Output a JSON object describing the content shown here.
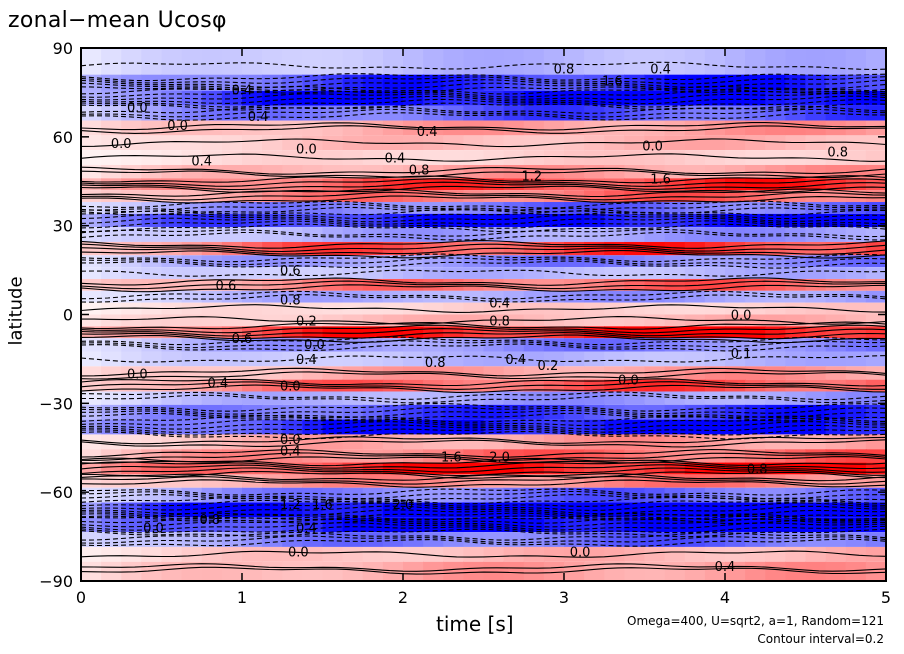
{
  "chart_data": {
    "type": "heatmap",
    "title": "zonal−mean Ucosφ",
    "xlabel": "time [s]",
    "ylabel": "latitude",
    "xlim": [
      0,
      5
    ],
    "ylim": [
      -90,
      90
    ],
    "x_ticks": [
      {
        "value": 0,
        "label": "0"
      },
      {
        "value": 1,
        "label": "1"
      },
      {
        "value": 2,
        "label": "2"
      },
      {
        "value": 3,
        "label": "3"
      },
      {
        "value": 4,
        "label": "4"
      },
      {
        "value": 5,
        "label": "5"
      }
    ],
    "y_ticks": [
      {
        "value": 90,
        "label": "90"
      },
      {
        "value": 60,
        "label": "60"
      },
      {
        "value": 30,
        "label": "30"
      },
      {
        "value": 0,
        "label": "0"
      },
      {
        "value": -30,
        "label": "−30"
      },
      {
        "value": -60,
        "label": "−60"
      },
      {
        "value": -90,
        "label": "−90"
      }
    ],
    "contour_interval": 0.2,
    "colors": {
      "positive": "#ff0000",
      "negative": "#0000ff",
      "zero": "#ffffff"
    },
    "bands": [
      {
        "lat": 84,
        "amp": -0.6
      },
      {
        "lat": 78,
        "amp": -1.8
      },
      {
        "lat": 73,
        "amp": -2.4
      },
      {
        "lat": 68,
        "amp": -1.4
      },
      {
        "lat": 63,
        "amp": 0.8
      },
      {
        "lat": 58,
        "amp": 0.6
      },
      {
        "lat": 53,
        "amp": 0.4
      },
      {
        "lat": 48,
        "amp": 0.8
      },
      {
        "lat": 44,
        "amp": 1.6
      },
      {
        "lat": 40,
        "amp": 1.2
      },
      {
        "lat": 36,
        "amp": -1.2
      },
      {
        "lat": 32,
        "amp": -2.2
      },
      {
        "lat": 27,
        "amp": -0.8
      },
      {
        "lat": 22,
        "amp": 1.6
      },
      {
        "lat": 18,
        "amp": -1.0
      },
      {
        "lat": 14,
        "amp": -0.6
      },
      {
        "lat": 10,
        "amp": 1.2
      },
      {
        "lat": 6,
        "amp": -0.8
      },
      {
        "lat": 2,
        "amp": 0.4
      },
      {
        "lat": -2,
        "amp": 0.6
      },
      {
        "lat": -6,
        "amp": 2.0
      },
      {
        "lat": -10,
        "amp": -1.0
      },
      {
        "lat": -15,
        "amp": -0.6
      },
      {
        "lat": -20,
        "amp": 0.8
      },
      {
        "lat": -24,
        "amp": 1.4
      },
      {
        "lat": -28,
        "amp": -0.8
      },
      {
        "lat": -33,
        "amp": -1.6
      },
      {
        "lat": -38,
        "amp": -2.2
      },
      {
        "lat": -43,
        "amp": 0.8
      },
      {
        "lat": -48,
        "amp": 1.2
      },
      {
        "lat": -52,
        "amp": 2.0
      },
      {
        "lat": -56,
        "amp": 1.0
      },
      {
        "lat": -61,
        "amp": -1.2
      },
      {
        "lat": -66,
        "amp": -2.8
      },
      {
        "lat": -71,
        "amp": -2.4
      },
      {
        "lat": -76,
        "amp": -1.2
      },
      {
        "lat": -81,
        "amp": 0.6
      },
      {
        "lat": -86,
        "amp": 0.8
      }
    ],
    "contour_labels": [
      {
        "t": 3.0,
        "lat": 83,
        "text": "0.8"
      },
      {
        "t": 3.6,
        "lat": 83,
        "text": "0.4"
      },
      {
        "t": 3.3,
        "lat": 79,
        "text": "1.6"
      },
      {
        "t": 1.0,
        "lat": 76,
        "text": "0.4"
      },
      {
        "t": 0.35,
        "lat": 70,
        "text": "0.0"
      },
      {
        "t": 1.1,
        "lat": 67,
        "text": "0.4"
      },
      {
        "t": 0.6,
        "lat": 64,
        "text": "0.0"
      },
      {
        "t": 2.15,
        "lat": 62,
        "text": "0.4"
      },
      {
        "t": 0.25,
        "lat": 58,
        "text": "0.0"
      },
      {
        "t": 1.4,
        "lat": 56,
        "text": "0.0"
      },
      {
        "t": 0.75,
        "lat": 52,
        "text": "0.4"
      },
      {
        "t": 1.95,
        "lat": 53,
        "text": "0.4"
      },
      {
        "t": 2.1,
        "lat": 49,
        "text": "0.8"
      },
      {
        "t": 2.8,
        "lat": 47,
        "text": "1.2"
      },
      {
        "t": 3.6,
        "lat": 46,
        "text": "1.6"
      },
      {
        "t": 4.7,
        "lat": 55,
        "text": "0.8"
      },
      {
        "t": 3.55,
        "lat": 57,
        "text": "0.0"
      },
      {
        "t": 1.3,
        "lat": 15,
        "text": "0.6"
      },
      {
        "t": 0.9,
        "lat": 10,
        "text": "0.6"
      },
      {
        "t": 1.3,
        "lat": 5,
        "text": "0.8"
      },
      {
        "t": 2.6,
        "lat": 4,
        "text": "0.4"
      },
      {
        "t": 1.4,
        "lat": -2,
        "text": "0.2"
      },
      {
        "t": 2.6,
        "lat": -2,
        "text": "0.8"
      },
      {
        "t": 4.1,
        "lat": 0,
        "text": "0.0"
      },
      {
        "t": 1.0,
        "lat": -8,
        "text": "0.6"
      },
      {
        "t": 1.4,
        "lat": -15,
        "text": "0.4"
      },
      {
        "t": 2.2,
        "lat": -16,
        "text": "0.8"
      },
      {
        "t": 1.45,
        "lat": -10,
        "text": "0.0"
      },
      {
        "t": 2.7,
        "lat": -15,
        "text": "0.4"
      },
      {
        "t": 2.9,
        "lat": -17,
        "text": "0.2"
      },
      {
        "t": 0.35,
        "lat": -20,
        "text": "0.0"
      },
      {
        "t": 0.85,
        "lat": -23,
        "text": "0.4"
      },
      {
        "t": 1.3,
        "lat": -24,
        "text": "0.0"
      },
      {
        "t": 3.4,
        "lat": -22,
        "text": "0.0"
      },
      {
        "t": 4.1,
        "lat": -13,
        "text": "0.1"
      },
      {
        "t": 1.3,
        "lat": -42,
        "text": "0.0"
      },
      {
        "t": 1.3,
        "lat": -46,
        "text": "0.4"
      },
      {
        "t": 2.3,
        "lat": -48,
        "text": "1.6"
      },
      {
        "t": 2.6,
        "lat": -48,
        "text": "2.0"
      },
      {
        "t": 4.2,
        "lat": -52,
        "text": "0.8"
      },
      {
        "t": 1.3,
        "lat": -64,
        "text": "1.2"
      },
      {
        "t": 1.5,
        "lat": -64,
        "text": "1.6"
      },
      {
        "t": 2.0,
        "lat": -64,
        "text": "2.0"
      },
      {
        "t": 0.8,
        "lat": -69,
        "text": "0.8"
      },
      {
        "t": 0.45,
        "lat": -72,
        "text": "0.0"
      },
      {
        "t": 1.4,
        "lat": -72,
        "text": "0.4"
      },
      {
        "t": 1.35,
        "lat": -80,
        "text": "0.0"
      },
      {
        "t": 3.1,
        "lat": -80,
        "text": "0.0"
      },
      {
        "t": 4.0,
        "lat": -85,
        "text": "0.4"
      }
    ],
    "annotations": [
      "Omega=400, U=sqrt2, a=1, Random=121",
      "Contour interval=0.2"
    ]
  }
}
